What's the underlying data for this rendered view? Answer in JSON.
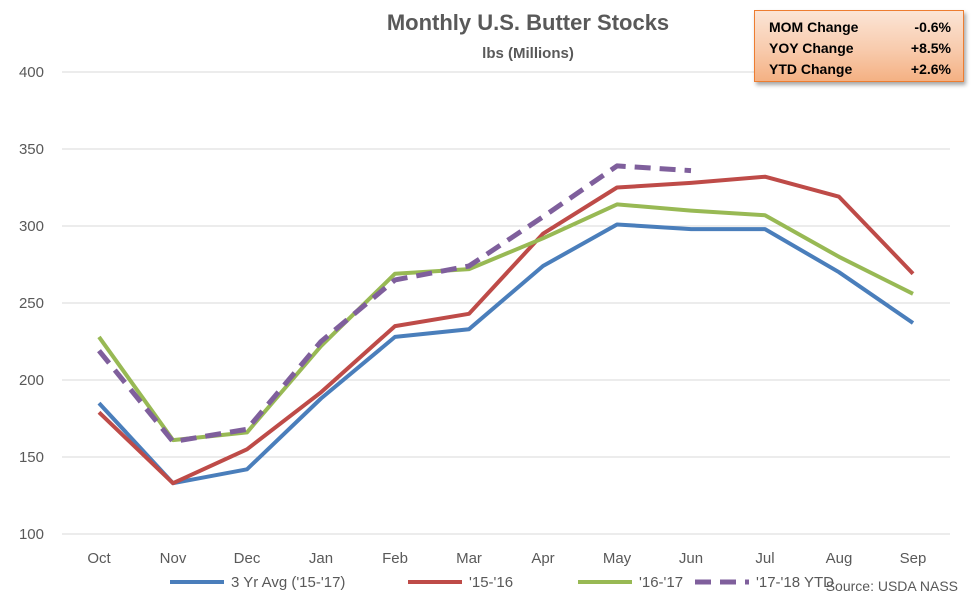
{
  "colors": {
    "series": [
      "#4a7ebb",
      "#be4b48",
      "#98b954",
      "#7f5f9c"
    ],
    "grid": "#d9d9d9",
    "text": "#595959",
    "stats_border": "#ed7d31"
  },
  "stats": [
    {
      "label": "MOM Change",
      "value": "-0.6%"
    },
    {
      "label": "YOY Change",
      "value": "+8.5%"
    },
    {
      "label": "YTD Change",
      "value": "+2.6%"
    }
  ],
  "source": "Source: USDA NASS",
  "chart_data": {
    "type": "line",
    "title": "Monthly U.S. Butter Stocks",
    "subtitle": "lbs (Millions)",
    "xlabel": "",
    "ylabel": "",
    "categories": [
      "Oct",
      "Nov",
      "Dec",
      "Jan",
      "Feb",
      "Mar",
      "Apr",
      "May",
      "Jun",
      "Jul",
      "Aug",
      "Sep"
    ],
    "ylim": [
      100,
      400
    ],
    "yticks": [
      100,
      150,
      200,
      250,
      300,
      350,
      400
    ],
    "grid": true,
    "legend_position": "bottom",
    "series": [
      {
        "name": "3 Yr Avg ('15-'17)",
        "style": "solid",
        "values": [
          185,
          133,
          142,
          188,
          228,
          233,
          274,
          301,
          298,
          298,
          270,
          237
        ]
      },
      {
        "name": "'15-'16",
        "style": "solid",
        "values": [
          179,
          133,
          155,
          192,
          235,
          243,
          295,
          325,
          328,
          332,
          319,
          269
        ]
      },
      {
        "name": "'16-'17",
        "style": "solid",
        "values": [
          228,
          161,
          166,
          222,
          269,
          272,
          292,
          314,
          310,
          307,
          280,
          256
        ]
      },
      {
        "name": "'17-'18 YTD",
        "style": "dashed",
        "values": [
          219,
          160,
          168,
          225,
          265,
          274,
          306,
          339,
          336,
          null,
          null,
          null
        ]
      }
    ]
  }
}
